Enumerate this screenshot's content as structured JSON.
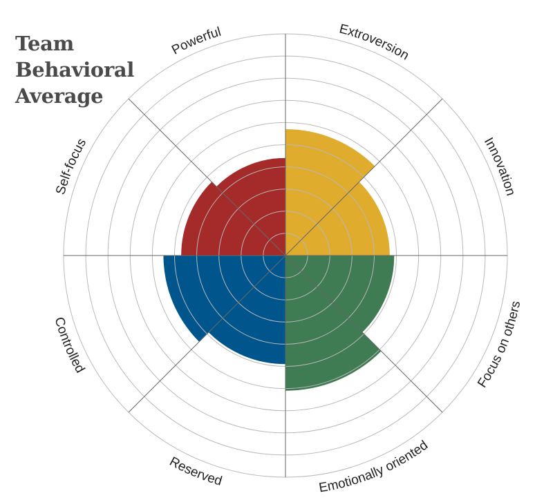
{
  "title_lines": [
    "Team",
    "Behavioral",
    "Average"
  ],
  "chart_data": {
    "type": "polar-area",
    "title": "Team Behavioral Average",
    "rings": 10,
    "max": 10,
    "grid": true,
    "axes": [
      {
        "label": "Extroversion"
      },
      {
        "label": "Innovation"
      },
      {
        "label": "Focus on others"
      },
      {
        "label": "Emotionally oriented"
      },
      {
        "label": "Reserved"
      },
      {
        "label": "Controlled"
      },
      {
        "label": "Self-focus"
      },
      {
        "label": "Powerful"
      }
    ],
    "values": [
      5.7,
      4.7,
      4.9,
      6.1,
      4.9,
      5.5,
      4.7,
      4.4
    ],
    "colors": {
      "yellow": "#e0ac2e",
      "green": "#3f7b53",
      "blue": "#00558c",
      "red": "#a52a2a",
      "grid": "#b8b8b8",
      "axis": "#666666"
    },
    "segment_colors": [
      "#e0ac2e",
      "#e0ac2e",
      "#3f7b53",
      "#3f7b53",
      "#00558c",
      "#00558c",
      "#a52a2a",
      "#a52a2a"
    ]
  }
}
